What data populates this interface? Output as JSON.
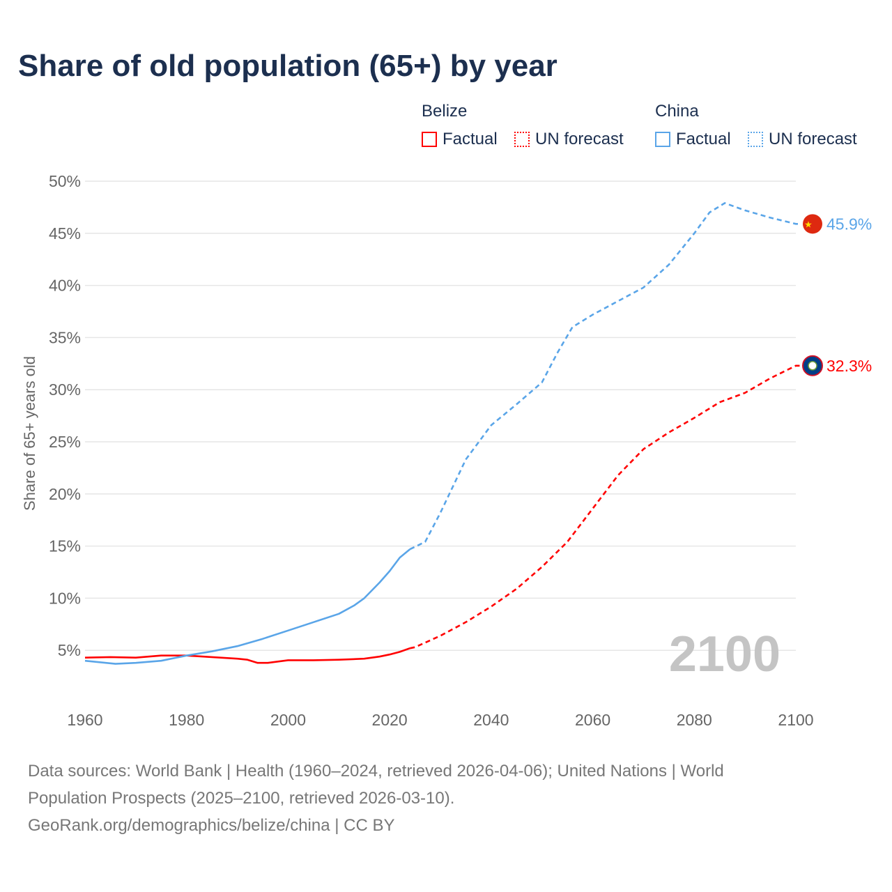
{
  "title": "Share of old population (65+) by year",
  "legend": {
    "groups": [
      {
        "name": "Belize",
        "color": "#ff0000",
        "items": [
          "Factual",
          "UN forecast"
        ]
      },
      {
        "name": "China",
        "color": "#5aa5e8",
        "items": [
          "Factual",
          "UN forecast"
        ]
      }
    ]
  },
  "year_watermark": "2100",
  "footer": {
    "line1": "Data sources: World Bank | Health (1960–2024, retrieved 2026-04-06); United Nations | World",
    "line2": "Population Prospects (2025–2100, retrieved 2026-03-10).",
    "line3": "GeoRank.org/demographics/belize/china | CC BY"
  },
  "chart_data": {
    "type": "line",
    "title": "Share of old population (65+) by year",
    "ylabel": "Share of 65+ years old",
    "xlabel": "",
    "xlim": [
      1960,
      2100
    ],
    "ylim": [
      0,
      50
    ],
    "xticks": [
      "1960",
      "1980",
      "2000",
      "2020",
      "2040",
      "2060",
      "2080",
      "2100"
    ],
    "yticks": [
      "5%",
      "10%",
      "15%",
      "20%",
      "25%",
      "30%",
      "35%",
      "40%",
      "45%",
      "50%"
    ],
    "grid": true,
    "series": [
      {
        "name": "Belize",
        "color": "#ff0000",
        "end_label": "32.3%",
        "factual": {
          "x": [
            1960,
            1965,
            1970,
            1975,
            1980,
            1985,
            1990,
            1992,
            1994,
            1996,
            2000,
            2005,
            2010,
            2015,
            2018,
            2020,
            2022,
            2024
          ],
          "y": [
            4.3,
            4.35,
            4.3,
            4.5,
            4.5,
            4.35,
            4.2,
            4.1,
            3.8,
            3.8,
            4.05,
            4.05,
            4.1,
            4.2,
            4.4,
            4.6,
            4.85,
            5.2
          ]
        },
        "forecast": {
          "x": [
            2024,
            2025,
            2030,
            2035,
            2040,
            2045,
            2050,
            2055,
            2060,
            2065,
            2070,
            2075,
            2080,
            2085,
            2090,
            2095,
            2100,
            2101
          ],
          "y": [
            5.2,
            5.3,
            6.4,
            7.7,
            9.2,
            10.9,
            13.0,
            15.4,
            18.6,
            21.8,
            24.3,
            25.9,
            27.3,
            28.8,
            29.7,
            31.1,
            32.3,
            32.3
          ]
        }
      },
      {
        "name": "China",
        "color": "#5aa5e8",
        "end_label": "45.9%",
        "factual": {
          "x": [
            1960,
            1966,
            1970,
            1975,
            1980,
            1985,
            1990,
            1995,
            2000,
            2005,
            2010,
            2013,
            2015,
            2018,
            2020,
            2022,
            2024
          ],
          "y": [
            4.0,
            3.7,
            3.8,
            4.0,
            4.5,
            4.9,
            5.4,
            6.1,
            6.9,
            7.7,
            8.5,
            9.3,
            10.0,
            11.5,
            12.6,
            13.9,
            14.7
          ]
        },
        "forecast": {
          "x": [
            2024,
            2027,
            2030,
            2035,
            2040,
            2045,
            2050,
            2053,
            2056,
            2060,
            2065,
            2070,
            2075,
            2080,
            2083,
            2086,
            2090,
            2095,
            2100,
            2101
          ],
          "y": [
            14.7,
            15.4,
            18.2,
            23.3,
            26.6,
            28.6,
            30.7,
            33.5,
            36.0,
            37.2,
            38.5,
            39.8,
            42.0,
            45.0,
            47.0,
            47.9,
            47.2,
            46.5,
            45.9,
            45.9
          ]
        }
      }
    ]
  }
}
